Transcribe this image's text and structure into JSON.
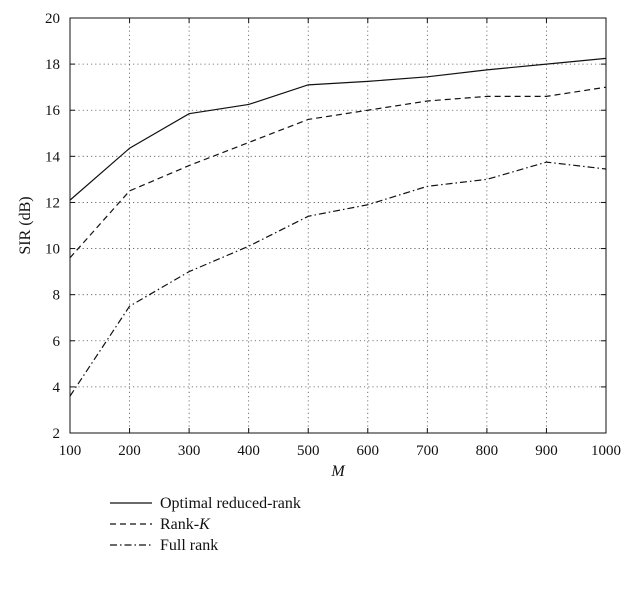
{
  "chart_data": {
    "type": "line",
    "xlabel": "M",
    "ylabel": "SIR (dB)",
    "xlim": [
      100,
      1000
    ],
    "ylim": [
      2,
      20
    ],
    "xticks": [
      100,
      200,
      300,
      400,
      500,
      600,
      700,
      800,
      900,
      1000
    ],
    "yticks": [
      2,
      4,
      6,
      8,
      10,
      12,
      14,
      16,
      18,
      20
    ],
    "grid": true,
    "legend_position": "below",
    "x": [
      100,
      200,
      300,
      400,
      500,
      600,
      700,
      800,
      900,
      1000
    ],
    "series": [
      {
        "name": "Optimal reduced-rank",
        "name_main": "Optimal reduced-rank",
        "name_italic": "",
        "style": "solid",
        "values": [
          12.1,
          14.35,
          15.85,
          16.25,
          17.1,
          17.25,
          17.45,
          17.75,
          18.0,
          18.25
        ]
      },
      {
        "name": "Rank-K",
        "name_main": "Rank-",
        "name_italic": "K",
        "style": "dashed",
        "values": [
          9.6,
          12.5,
          13.6,
          14.6,
          15.6,
          16.0,
          16.4,
          16.6,
          16.6,
          17.0
        ]
      },
      {
        "name": "Full rank",
        "name_main": "Full rank",
        "name_italic": "",
        "style": "dashdot",
        "values": [
          3.6,
          7.5,
          9.0,
          10.1,
          11.4,
          11.9,
          12.7,
          13.0,
          13.75,
          13.45
        ]
      }
    ],
    "colors": {
      "line": "#111111",
      "grid": "#555555",
      "axes": "#111111"
    }
  }
}
